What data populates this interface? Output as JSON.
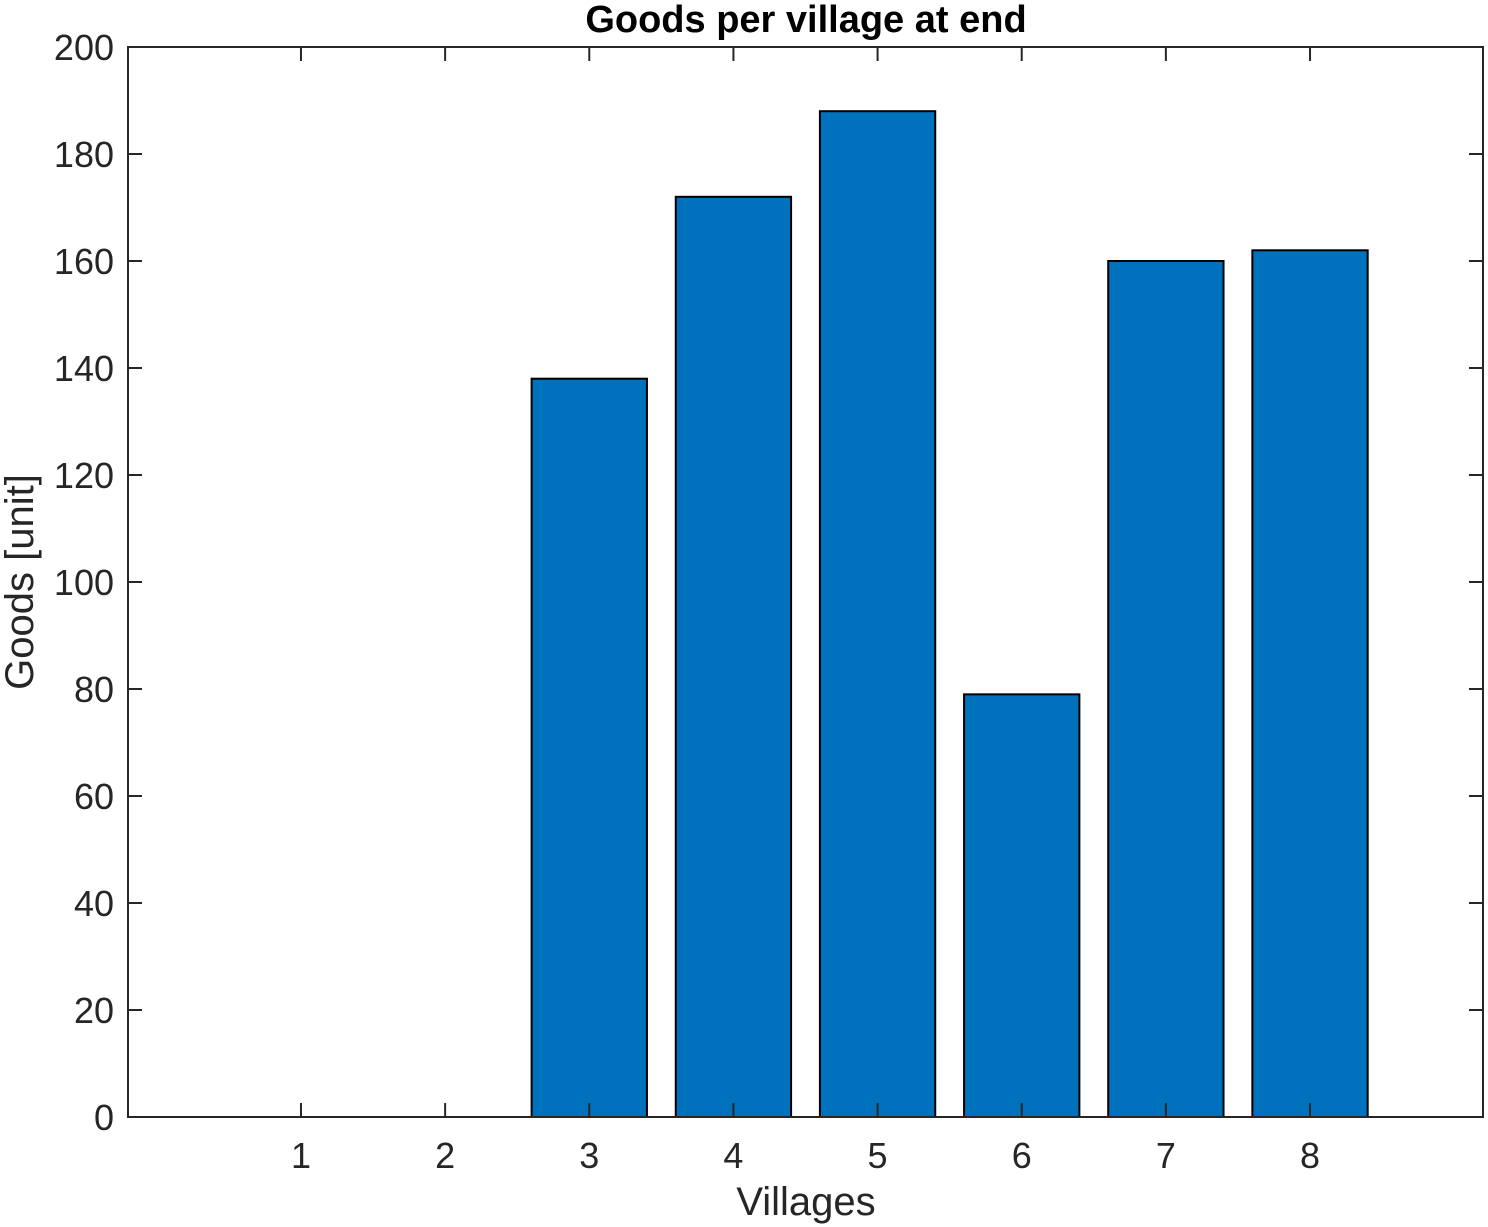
{
  "chart_data": {
    "type": "bar",
    "title": "Goods per village at end",
    "xlabel": "Villages",
    "ylabel": "Goods [unit]",
    "categories": [
      "1",
      "2",
      "3",
      "4",
      "5",
      "6",
      "7",
      "8"
    ],
    "values": [
      0,
      0,
      138,
      172,
      188,
      79,
      160,
      162
    ],
    "xlim": [
      -0.2,
      9.2
    ],
    "ylim": [
      0,
      200
    ],
    "yticks": [
      "0",
      "20",
      "40",
      "60",
      "80",
      "100",
      "120",
      "140",
      "160",
      "180",
      "200"
    ],
    "bar_color": "#0072BD",
    "grid": false,
    "legend": "none"
  }
}
